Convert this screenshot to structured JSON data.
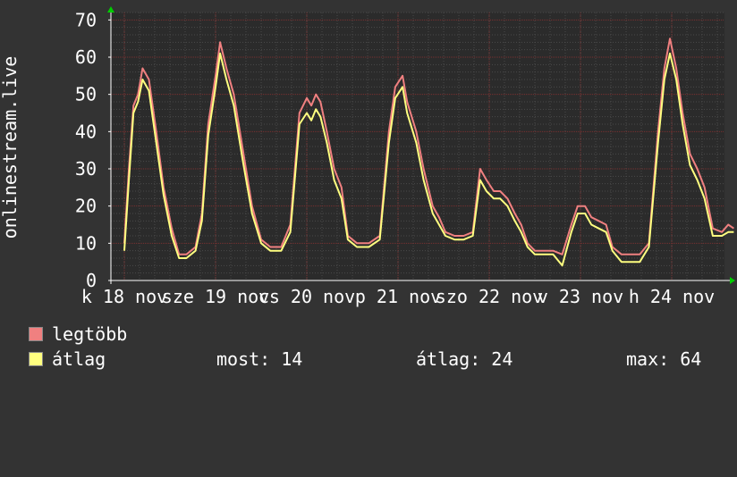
{
  "chart_data": {
    "type": "line",
    "ylabel": "onlinestream.live",
    "ylim": [
      0,
      72
    ],
    "yticks": [
      0,
      10,
      20,
      30,
      40,
      50,
      60,
      70
    ],
    "grid": true,
    "xlim": [
      0,
      7
    ],
    "x_tick_labels": [
      {
        "label": "k 18 nov",
        "x": 0
      },
      {
        "label": "sze 19 nov",
        "x": 1
      },
      {
        "label": "cs 20 nov",
        "x": 2
      },
      {
        "label": "p 21 nov",
        "x": 3
      },
      {
        "label": "szo 22 nov",
        "x": 4
      },
      {
        "label": "v 23 nov",
        "x": 5
      },
      {
        "label": "h 24 nov",
        "x": 6
      }
    ],
    "series": [
      {
        "name": "legtöbb",
        "color": "#f08080",
        "points": [
          [
            0,
            10
          ],
          [
            0.05,
            30
          ],
          [
            0.1,
            47
          ],
          [
            0.15,
            50
          ],
          [
            0.2,
            57
          ],
          [
            0.27,
            54
          ],
          [
            0.35,
            40
          ],
          [
            0.43,
            25
          ],
          [
            0.52,
            14
          ],
          [
            0.6,
            7
          ],
          [
            0.68,
            7
          ],
          [
            0.78,
            9
          ],
          [
            0.85,
            18
          ],
          [
            0.92,
            42
          ],
          [
            1.0,
            55
          ],
          [
            1.05,
            64
          ],
          [
            1.12,
            57
          ],
          [
            1.2,
            50
          ],
          [
            1.3,
            35
          ],
          [
            1.4,
            20
          ],
          [
            1.5,
            11
          ],
          [
            1.6,
            9
          ],
          [
            1.72,
            9
          ],
          [
            1.82,
            15
          ],
          [
            1.92,
            45
          ],
          [
            2.0,
            49
          ],
          [
            2.05,
            47
          ],
          [
            2.1,
            50
          ],
          [
            2.15,
            48
          ],
          [
            2.22,
            40
          ],
          [
            2.3,
            30
          ],
          [
            2.38,
            25
          ],
          [
            2.45,
            12
          ],
          [
            2.55,
            10
          ],
          [
            2.68,
            10
          ],
          [
            2.8,
            12
          ],
          [
            2.9,
            40
          ],
          [
            2.97,
            52
          ],
          [
            3.05,
            55
          ],
          [
            3.1,
            48
          ],
          [
            3.2,
            40
          ],
          [
            3.28,
            30
          ],
          [
            3.38,
            20
          ],
          [
            3.45,
            17
          ],
          [
            3.52,
            13
          ],
          [
            3.62,
            12
          ],
          [
            3.72,
            12
          ],
          [
            3.82,
            13
          ],
          [
            3.9,
            30
          ],
          [
            3.97,
            27
          ],
          [
            4.05,
            24
          ],
          [
            4.12,
            24
          ],
          [
            4.2,
            22
          ],
          [
            4.28,
            18
          ],
          [
            4.35,
            15
          ],
          [
            4.42,
            10
          ],
          [
            4.5,
            8
          ],
          [
            4.6,
            8
          ],
          [
            4.7,
            8
          ],
          [
            4.8,
            7
          ],
          [
            4.9,
            15
          ],
          [
            4.97,
            20
          ],
          [
            5.05,
            20
          ],
          [
            5.12,
            17
          ],
          [
            5.2,
            16
          ],
          [
            5.28,
            15
          ],
          [
            5.35,
            9
          ],
          [
            5.45,
            7
          ],
          [
            5.55,
            7
          ],
          [
            5.65,
            7
          ],
          [
            5.75,
            10
          ],
          [
            5.85,
            40
          ],
          [
            5.92,
            57
          ],
          [
            5.98,
            65
          ],
          [
            6.05,
            57
          ],
          [
            6.12,
            45
          ],
          [
            6.2,
            34
          ],
          [
            6.28,
            30
          ],
          [
            6.36,
            25
          ],
          [
            6.45,
            14
          ],
          [
            6.55,
            13
          ],
          [
            6.62,
            15
          ],
          [
            6.68,
            14
          ]
        ]
      },
      {
        "name": "átlag",
        "color": "#ffff80",
        "points": [
          [
            0,
            8
          ],
          [
            0.05,
            27
          ],
          [
            0.1,
            45
          ],
          [
            0.15,
            48
          ],
          [
            0.2,
            54
          ],
          [
            0.27,
            51
          ],
          [
            0.35,
            37
          ],
          [
            0.43,
            23
          ],
          [
            0.52,
            12
          ],
          [
            0.6,
            6
          ],
          [
            0.68,
            6
          ],
          [
            0.78,
            8
          ],
          [
            0.85,
            16
          ],
          [
            0.92,
            39
          ],
          [
            1.0,
            52
          ],
          [
            1.05,
            61
          ],
          [
            1.12,
            54
          ],
          [
            1.2,
            47
          ],
          [
            1.3,
            32
          ],
          [
            1.4,
            18
          ],
          [
            1.5,
            10
          ],
          [
            1.6,
            8
          ],
          [
            1.72,
            8
          ],
          [
            1.82,
            13
          ],
          [
            1.92,
            42
          ],
          [
            2.0,
            45
          ],
          [
            2.05,
            43
          ],
          [
            2.1,
            46
          ],
          [
            2.15,
            44
          ],
          [
            2.22,
            37
          ],
          [
            2.3,
            27
          ],
          [
            2.38,
            22
          ],
          [
            2.45,
            11
          ],
          [
            2.55,
            9
          ],
          [
            2.68,
            9
          ],
          [
            2.8,
            11
          ],
          [
            2.9,
            37
          ],
          [
            2.97,
            49
          ],
          [
            3.05,
            52
          ],
          [
            3.1,
            45
          ],
          [
            3.2,
            37
          ],
          [
            3.28,
            27
          ],
          [
            3.38,
            18
          ],
          [
            3.45,
            15
          ],
          [
            3.52,
            12
          ],
          [
            3.62,
            11
          ],
          [
            3.72,
            11
          ],
          [
            3.82,
            12
          ],
          [
            3.9,
            27
          ],
          [
            3.97,
            24
          ],
          [
            4.05,
            22
          ],
          [
            4.12,
            22
          ],
          [
            4.2,
            20
          ],
          [
            4.28,
            16
          ],
          [
            4.35,
            13
          ],
          [
            4.42,
            9
          ],
          [
            4.5,
            7
          ],
          [
            4.6,
            7
          ],
          [
            4.7,
            7
          ],
          [
            4.8,
            4
          ],
          [
            4.9,
            13
          ],
          [
            4.97,
            18
          ],
          [
            5.05,
            18
          ],
          [
            5.12,
            15
          ],
          [
            5.2,
            14
          ],
          [
            5.28,
            13
          ],
          [
            5.35,
            8
          ],
          [
            5.45,
            5
          ],
          [
            5.55,
            5
          ],
          [
            5.65,
            5
          ],
          [
            5.75,
            9
          ],
          [
            5.85,
            37
          ],
          [
            5.92,
            54
          ],
          [
            5.98,
            61
          ],
          [
            6.05,
            54
          ],
          [
            6.12,
            42
          ],
          [
            6.2,
            31
          ],
          [
            6.28,
            27
          ],
          [
            6.36,
            22
          ],
          [
            6.45,
            12
          ],
          [
            6.55,
            12
          ],
          [
            6.62,
            13
          ],
          [
            6.68,
            13
          ]
        ]
      }
    ]
  },
  "legend": {
    "items": [
      {
        "label": "legtöbb",
        "color": "#f08080"
      },
      {
        "label": "átlag",
        "color": "#ffff80"
      }
    ],
    "stats": {
      "now_label": "most: 14",
      "avg_label": "átlag: 24",
      "max_label": "max: 64"
    }
  }
}
